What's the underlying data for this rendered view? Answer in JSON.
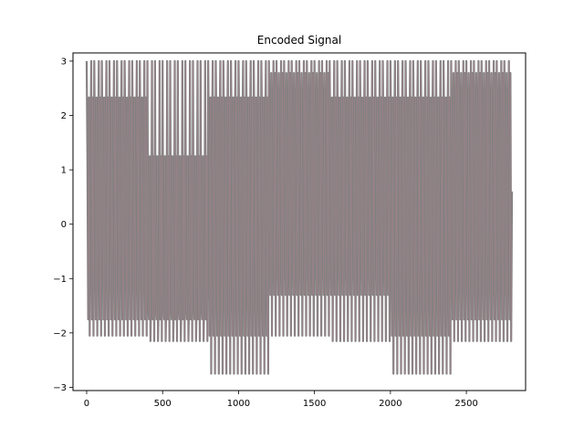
{
  "chart_data": {
    "type": "line",
    "title": "Encoded Signal",
    "xlabel": "",
    "ylabel": "",
    "xlim": [
      -90,
      2890
    ],
    "ylim": [
      -3.06,
      3.15
    ],
    "xticks": [
      0,
      500,
      1000,
      1500,
      2000,
      2500
    ],
    "xtick_labels": [
      "0",
      "500",
      "1000",
      "1500",
      "2000",
      "2500"
    ],
    "yticks": [
      -3,
      -2,
      -1,
      0,
      1,
      2,
      3
    ],
    "ytick_labels": [
      "−3",
      "−2",
      "−1",
      "0",
      "1",
      "2",
      "3"
    ],
    "grid": false,
    "legend": "none",
    "series": [
      {
        "color": "#808080",
        "x_range": [
          0,
          2800
        ],
        "oscillation_period": 50,
        "segments": [
          {
            "x0": 0,
            "x1": 400,
            "levels": [
              3.0,
              2.33,
              1.2,
              -1.75,
              -2.05
            ]
          },
          {
            "x0": 400,
            "x1": 800,
            "levels": [
              3.0,
              1.25,
              -1.3,
              -1.75,
              -2.15
            ]
          },
          {
            "x0": 800,
            "x1": 1200,
            "levels": [
              3.0,
              2.33,
              1.6,
              -2.05,
              -2.75
            ]
          },
          {
            "x0": 1200,
            "x1": 1600,
            "levels": [
              3.0,
              2.78,
              1.2,
              -1.3,
              -2.05
            ]
          },
          {
            "x0": 1600,
            "x1": 2000,
            "levels": [
              3.0,
              2.33,
              1.2,
              -1.3,
              -2.15
            ]
          },
          {
            "x0": 2000,
            "x1": 2400,
            "levels": [
              3.0,
              2.33,
              1.6,
              -2.05,
              -2.75
            ]
          },
          {
            "x0": 2400,
            "x1": 2800,
            "levels": [
              3.0,
              2.78,
              1.2,
              -1.75,
              -2.15
            ]
          }
        ]
      }
    ]
  }
}
